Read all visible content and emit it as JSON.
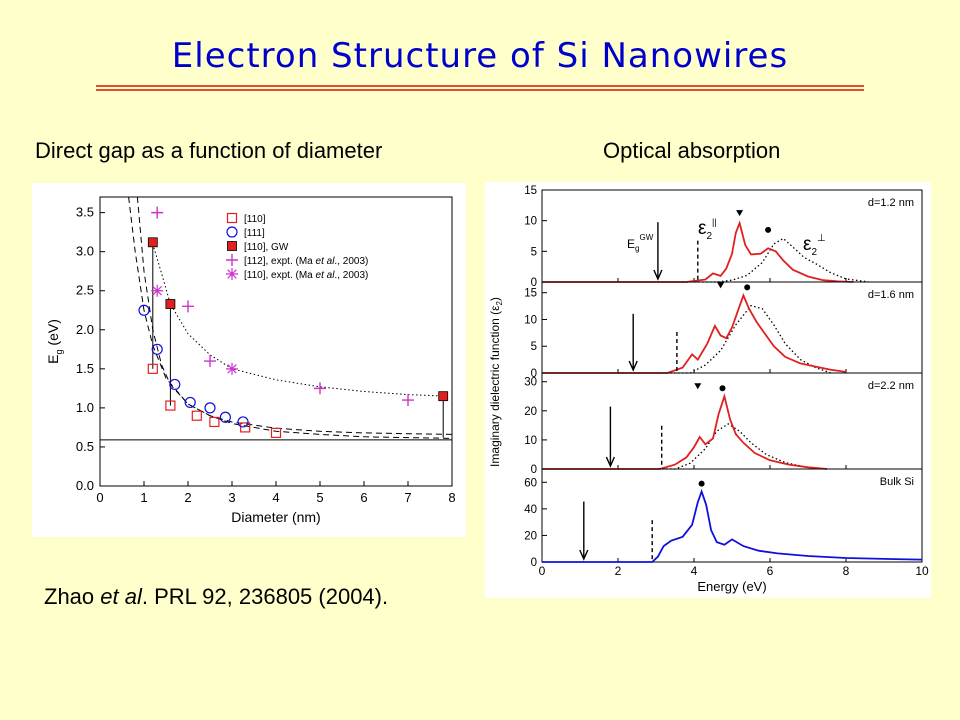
{
  "slide": {
    "title": "Electron Structure of Si Nanowires",
    "subtitle_left": "Direct gap as a function of diameter",
    "subtitle_right": "Optical absorption",
    "citation_authors": "Zhao ",
    "citation_etal": "et al",
    "citation_rest": ". PRL 92, 236805 (2004)."
  },
  "colors": {
    "title": "#0000CC",
    "rule": "#E05030",
    "background": "#FFFFCC",
    "red_series": "#E02020",
    "blue_series": "#1010DD",
    "magenta_series": "#CC33CC"
  },
  "chart_data": [
    {
      "type": "scatter",
      "xlabel": "Diameter (nm)",
      "ylabel_main": "E",
      "ylabel_sub": "g",
      "ylabel_unit": " (eV)",
      "xlim": [
        0,
        8
      ],
      "ylim": [
        0,
        3.7
      ],
      "xticks": [
        0,
        1,
        2,
        3,
        4,
        5,
        6,
        7,
        8
      ],
      "yticks": [
        0.0,
        0.5,
        1.0,
        1.5,
        2.0,
        2.5,
        3.0,
        3.5
      ],
      "ytick_labels": [
        "0.0",
        "0.5",
        "1.0",
        "1.5",
        "2.0",
        "2.5",
        "3.0",
        "3.5"
      ],
      "grid": false,
      "legend_position": "top-right",
      "bulk_gap": 0.59,
      "series": [
        {
          "name": "[110]",
          "marker": "open-square",
          "color": "#E02020",
          "x": [
            1.2,
            1.6,
            2.2,
            2.6,
            3.3,
            4.0
          ],
          "y": [
            1.5,
            1.03,
            0.9,
            0.82,
            0.75,
            0.68
          ]
        },
        {
          "name": "[111]",
          "marker": "open-circle",
          "color": "#1010DD",
          "x": [
            1.0,
            1.3,
            1.7,
            2.05,
            2.5,
            2.85,
            3.25
          ],
          "y": [
            2.25,
            1.75,
            1.3,
            1.07,
            1.0,
            0.88,
            0.82
          ]
        },
        {
          "name": "[110], GW",
          "marker": "filled-square",
          "color": "#E02020",
          "x": [
            1.2,
            1.6,
            7.8
          ],
          "y": [
            3.12,
            2.33,
            1.15
          ]
        },
        {
          "name_main": "[112], expt. (Ma ",
          "name_italic": "et al",
          "name_tail": "., 2003)",
          "marker": "plus",
          "color": "#CC33CC",
          "x": [
            1.3,
            2.0,
            2.5,
            5.0,
            7.0
          ],
          "y": [
            3.5,
            2.3,
            1.6,
            1.25,
            1.1
          ]
        },
        {
          "name_main": "[110], expt. (Ma ",
          "name_italic": "et al",
          "name_tail": "., 2003)",
          "marker": "asterisk",
          "color": "#CC33CC",
          "x": [
            1.3,
            3.0
          ],
          "y": [
            2.5,
            1.5
          ]
        }
      ],
      "fit_curves": [
        {
          "style": "dotted",
          "x": [
            1.2,
            1.4,
            1.6,
            2.0,
            2.5,
            3.0,
            4.0,
            5.0,
            6.0,
            7.0,
            7.9
          ],
          "y": [
            3.1,
            2.72,
            2.33,
            1.95,
            1.68,
            1.5,
            1.36,
            1.27,
            1.21,
            1.17,
            1.15
          ]
        },
        {
          "style": "dashed",
          "x": [
            0.65,
            0.8,
            1.0,
            1.2,
            1.5,
            2.0,
            2.5,
            3.0,
            4.0,
            5.0,
            6.0,
            7.0,
            8.0
          ],
          "y": [
            3.7,
            3.0,
            2.25,
            1.8,
            1.38,
            1.05,
            0.9,
            0.8,
            0.7,
            0.66,
            0.63,
            0.62,
            0.61
          ]
        },
        {
          "style": "dashed",
          "x": [
            0.85,
            1.0,
            1.2,
            1.4,
            1.6,
            2.0,
            2.5,
            3.0,
            4.0,
            5.0,
            6.0,
            7.0,
            8.0
          ],
          "y": [
            3.7,
            2.75,
            2.0,
            1.55,
            1.3,
            1.05,
            0.9,
            0.82,
            0.74,
            0.7,
            0.68,
            0.67,
            0.66
          ]
        }
      ],
      "gw_connectors": [
        {
          "x": 1.2,
          "y_low": 1.5,
          "y_high": 3.12
        },
        {
          "x": 1.6,
          "y_low": 1.03,
          "y_high": 2.33
        },
        {
          "x": 7.8,
          "y_low": 0.62,
          "y_high": 1.15
        }
      ]
    },
    {
      "type": "line",
      "xlabel": "Energy (eV)",
      "ylabel_text": "Imaginary dielectric function (",
      "ylabel_symbol": "ε",
      "ylabel_sub": "2",
      "ylabel_close": ")",
      "xlim": [
        0,
        10
      ],
      "xticks": [
        0,
        2,
        4,
        6,
        8,
        10
      ],
      "eg_label": "E",
      "eg_sub": "g",
      "eg_sup": "GW",
      "eps_par_label": "ε",
      "eps_par_sub": "2",
      "eps_par_sup": "||",
      "eps_perp_label": "ε",
      "eps_perp_sub": "2",
      "eps_perp_sup": "⊥",
      "panels": [
        {
          "label": "d=1.2 nm",
          "ylim": [
            0,
            15
          ],
          "yticks": [
            0,
            5,
            10,
            15
          ],
          "arrow_x": 3.05,
          "dashed_x": 4.1,
          "triangle_x": 5.2,
          "dot_x": 5.95,
          "parallel": {
            "x": [
              0,
              3.8,
              4.3,
              4.5,
              4.7,
              4.85,
              5.0,
              5.1,
              5.2,
              5.35,
              5.5,
              5.75,
              5.95,
              6.15,
              6.35,
              6.6,
              7.0,
              7.4,
              7.8,
              8.2
            ],
            "y": [
              0,
              0,
              0.4,
              1.4,
              1.0,
              2.2,
              4.6,
              8.0,
              9.6,
              6.0,
              4.5,
              4.6,
              5.5,
              5.0,
              3.5,
              2.0,
              0.9,
              0.3,
              0.1,
              0
            ]
          },
          "perpendicular": {
            "x": [
              0,
              4.6,
              5.0,
              5.4,
              5.8,
              6.1,
              6.35,
              6.6,
              6.9,
              7.2,
              7.6,
              8.0,
              8.6
            ],
            "y": [
              0,
              0,
              0.3,
              1.1,
              3.2,
              6.2,
              7.1,
              5.7,
              4.0,
              3.0,
              1.5,
              0.5,
              0
            ]
          }
        },
        {
          "label": "d=1.6 nm",
          "ylim": [
            0,
            17
          ],
          "yticks": [
            0,
            5,
            10,
            15
          ],
          "arrow_x": 2.4,
          "dashed_x": 3.55,
          "triangle_x": 4.7,
          "dot_x": 5.4,
          "parallel": {
            "x": [
              0,
              3.3,
              3.7,
              3.95,
              4.1,
              4.35,
              4.55,
              4.7,
              4.85,
              5.0,
              5.15,
              5.3,
              5.45,
              5.65,
              5.85,
              6.1,
              6.4,
              6.8,
              7.2,
              7.6,
              8.0
            ],
            "y": [
              0,
              0,
              1.0,
              3.5,
              2.5,
              5.5,
              8.8,
              7.0,
              6.5,
              8.5,
              11.5,
              14.5,
              12.0,
              9.5,
              7.5,
              5.0,
              3.0,
              1.8,
              1.2,
              0.6,
              0.2
            ]
          },
          "perpendicular": {
            "x": [
              0,
              3.9,
              4.3,
              4.7,
              5.1,
              5.5,
              5.8,
              6.1,
              6.4,
              6.8,
              7.2,
              7.6
            ],
            "y": [
              0,
              0,
              1.5,
              4.2,
              9.0,
              12.6,
              12.0,
              9.0,
              5.5,
              2.5,
              1.0,
              0
            ]
          }
        },
        {
          "label": "d=2.2 nm",
          "ylim": [
            0,
            33
          ],
          "yticks": [
            0,
            10,
            20,
            30
          ],
          "arrow_x": 1.8,
          "dashed_x": 3.15,
          "triangle_x": 4.1,
          "dot_x": 4.75,
          "parallel": {
            "x": [
              0,
              3.1,
              3.5,
              3.8,
              4.0,
              4.15,
              4.3,
              4.5,
              4.65,
              4.8,
              4.95,
              5.1,
              5.3,
              5.6,
              6.0,
              6.5,
              7.0,
              7.5
            ],
            "y": [
              0,
              0,
              1.5,
              4.0,
              7.5,
              11.0,
              8.5,
              10.5,
              19.0,
              25.0,
              17.0,
              12.0,
              9.0,
              5.5,
              3.0,
              1.5,
              0.6,
              0
            ]
          },
          "perpendicular": {
            "x": [
              0,
              3.5,
              3.9,
              4.3,
              4.6,
              4.9,
              5.2,
              5.5,
              5.9,
              6.4,
              6.9,
              7.4
            ],
            "y": [
              0,
              0,
              2.0,
              7.0,
              13.0,
              15.5,
              13.0,
              9.0,
              5.0,
              2.2,
              0.8,
              0
            ]
          }
        },
        {
          "label": "Bulk Si",
          "ylim": [
            0,
            70
          ],
          "yticks": [
            0,
            20,
            40,
            60
          ],
          "arrow_x": 1.1,
          "dashed_x": 2.9,
          "dot_x": 4.2,
          "parallel": {
            "x": [
              0,
              2.9,
              3.05,
              3.2,
              3.4,
              3.7,
              3.95,
              4.1,
              4.2,
              4.32,
              4.45,
              4.6,
              4.8,
              5.0,
              5.3,
              5.7,
              6.2,
              7.0,
              8.0,
              9.0,
              10.0
            ],
            "y": [
              0,
              0,
              4.0,
              12.0,
              16.0,
              19.0,
              28.0,
              45.0,
              53.0,
              43.0,
              24.0,
              15.0,
              13.0,
              17.0,
              12.0,
              8.5,
              6.5,
              4.5,
              3.0,
              2.3,
              1.8
            ]
          }
        }
      ]
    }
  ]
}
